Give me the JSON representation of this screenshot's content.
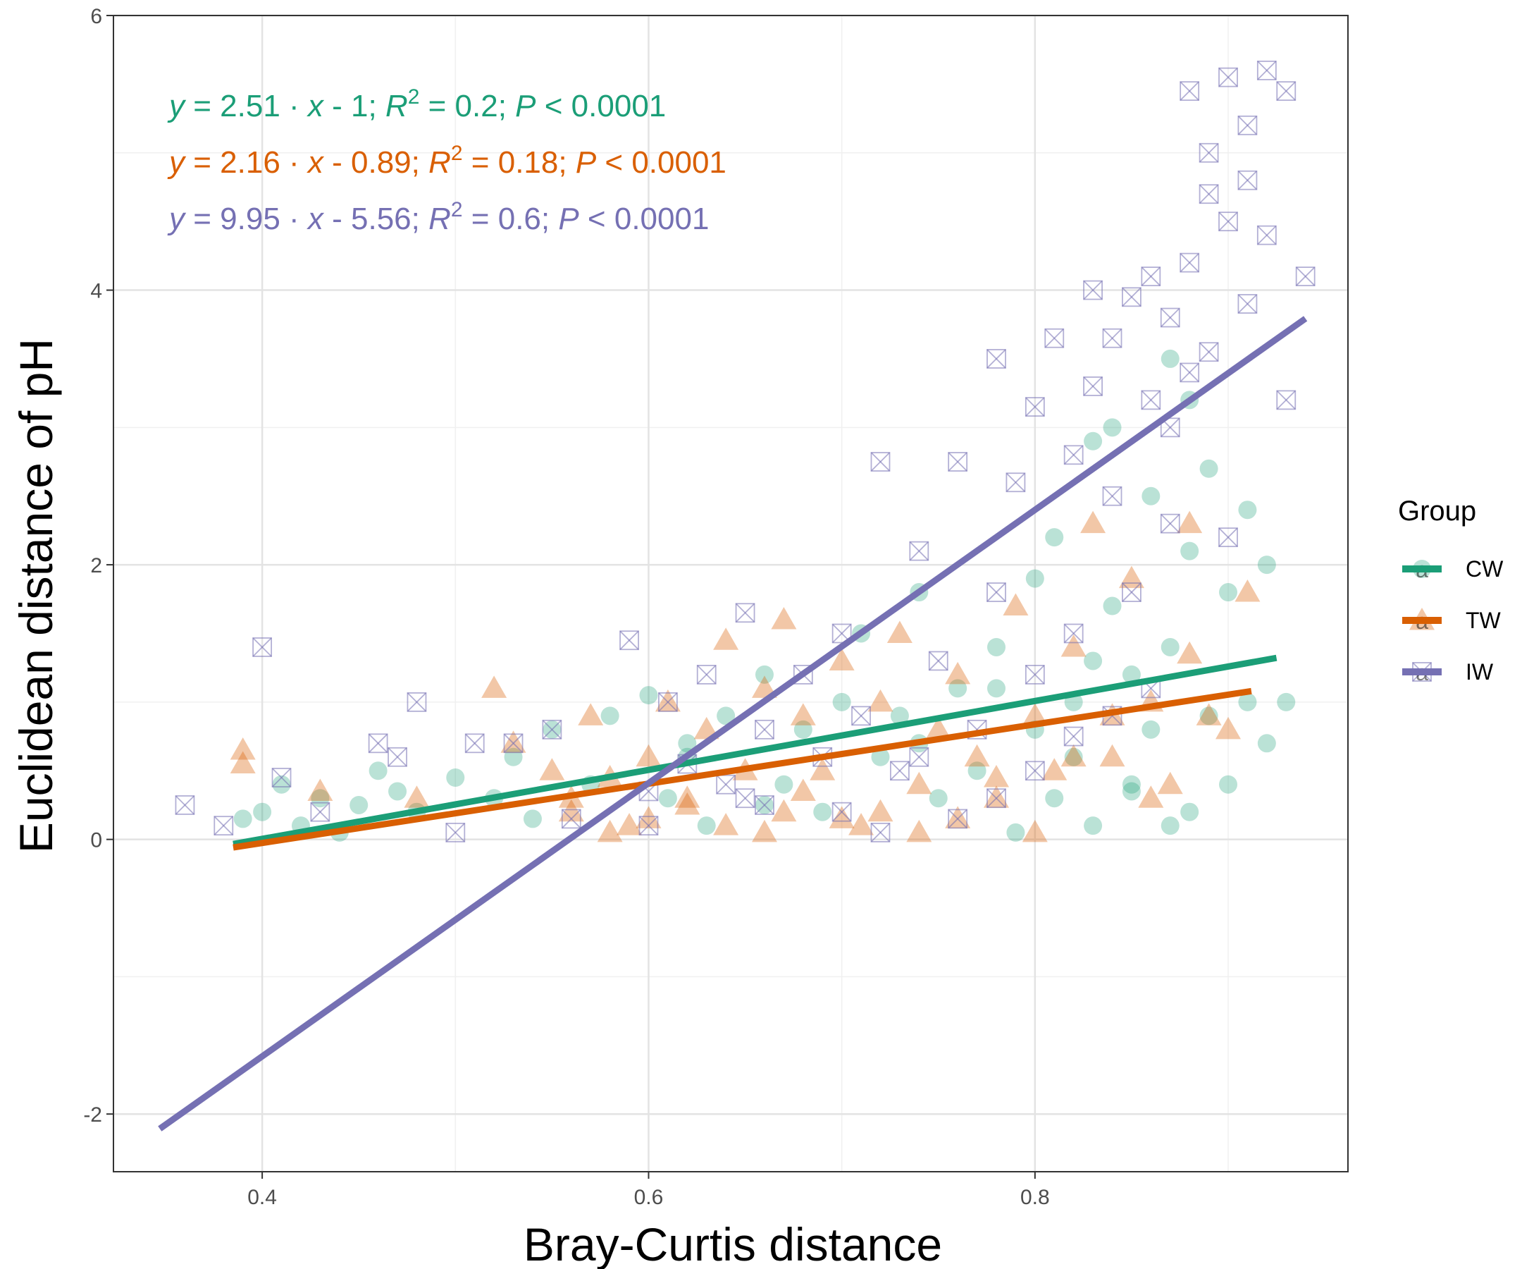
{
  "chart_data": {
    "type": "scatter",
    "xlabel": "Bray-Curtis distance",
    "ylabel": "Euclidean distance of pH",
    "xlim": [
      0.323,
      0.962
    ],
    "ylim": [
      -2.42,
      6.0
    ],
    "x_ticks": [
      0.4,
      0.6,
      0.8
    ],
    "x_tick_labels": [
      "0.4",
      "0.6",
      "0.8"
    ],
    "y_ticks": [
      -2,
      0,
      2,
      4,
      6
    ],
    "y_tick_labels": [
      "-2",
      "0",
      "2",
      "4",
      "6"
    ],
    "grid": true,
    "legend": {
      "title": "Group",
      "position": "right",
      "glyph": "a",
      "entries": [
        {
          "label": "CW",
          "color": "#1b9e77",
          "shape": "circle"
        },
        {
          "label": "TW",
          "color": "#d95f02",
          "shape": "triangle"
        },
        {
          "label": "IW",
          "color": "#7570b3",
          "shape": "boxed-x"
        }
      ]
    },
    "equation_parts": {
      "y": "y",
      "eq": " = ",
      "dot": " · ",
      "x": "x",
      "R": "R",
      "sq": "2",
      "P": "P",
      "sep": ";  "
    },
    "series": [
      {
        "name": "CW",
        "color": "#1b9e77",
        "shape": "circle",
        "fit": {
          "slope": 2.51,
          "intercept": -1,
          "x_range": [
            0.385,
            0.925
          ],
          "slope_text": "2.51",
          "intercept_text": " - 1",
          "r2_text": " = 0.2",
          "p_text": " < 0.0001"
        },
        "points_x": [
          0.39,
          0.4,
          0.41,
          0.42,
          0.43,
          0.44,
          0.45,
          0.46,
          0.47,
          0.48,
          0.5,
          0.52,
          0.53,
          0.54,
          0.55,
          0.57,
          0.58,
          0.6,
          0.61,
          0.62,
          0.63,
          0.64,
          0.66,
          0.67,
          0.68,
          0.69,
          0.7,
          0.71,
          0.72,
          0.73,
          0.74,
          0.75,
          0.76,
          0.77,
          0.78,
          0.79,
          0.8,
          0.8,
          0.81,
          0.81,
          0.82,
          0.82,
          0.83,
          0.83,
          0.84,
          0.84,
          0.85,
          0.85,
          0.86,
          0.86,
          0.87,
          0.87,
          0.88,
          0.88,
          0.89,
          0.89,
          0.9,
          0.9,
          0.91,
          0.91,
          0.92,
          0.92,
          0.93,
          0.87,
          0.88,
          0.85,
          0.83,
          0.78,
          0.74,
          0.66,
          0.62
        ],
        "points_y": [
          0.15,
          0.2,
          0.4,
          0.1,
          0.3,
          0.05,
          0.25,
          0.5,
          0.35,
          0.2,
          0.45,
          0.3,
          0.6,
          0.15,
          0.8,
          0.4,
          0.9,
          1.05,
          0.3,
          0.7,
          0.1,
          0.9,
          1.2,
          0.4,
          0.8,
          0.2,
          1.0,
          1.5,
          0.6,
          0.9,
          1.8,
          0.3,
          1.1,
          0.5,
          1.4,
          0.05,
          1.9,
          0.8,
          0.3,
          2.2,
          1.0,
          0.6,
          2.9,
          0.1,
          1.7,
          3.0,
          1.2,
          0.4,
          2.5,
          0.8,
          3.5,
          1.4,
          0.2,
          2.1,
          0.9,
          2.7,
          0.4,
          1.8,
          2.4,
          1.0,
          0.7,
          2.0,
          1.0,
          0.1,
          3.2,
          0.35,
          1.3,
          1.1,
          0.7,
          0.25,
          0.6
        ]
      },
      {
        "name": "TW",
        "color": "#d95f02",
        "shape": "triangle",
        "fit": {
          "slope": 2.16,
          "intercept": -0.89,
          "x_range": [
            0.385,
            0.912
          ],
          "slope_text": "2.16",
          "intercept_text": " - 0.89",
          "r2_text": " = 0.18",
          "p_text": " < 0.0001"
        },
        "points_x": [
          0.39,
          0.39,
          0.43,
          0.48,
          0.52,
          0.53,
          0.55,
          0.56,
          0.57,
          0.58,
          0.59,
          0.6,
          0.61,
          0.62,
          0.63,
          0.64,
          0.65,
          0.66,
          0.67,
          0.67,
          0.68,
          0.69,
          0.7,
          0.71,
          0.72,
          0.73,
          0.74,
          0.75,
          0.76,
          0.77,
          0.78,
          0.79,
          0.8,
          0.81,
          0.82,
          0.83,
          0.84,
          0.85,
          0.86,
          0.87,
          0.88,
          0.89,
          0.9,
          0.91,
          0.74,
          0.72,
          0.7,
          0.68,
          0.66,
          0.64,
          0.62,
          0.76,
          0.78,
          0.8,
          0.82,
          0.84,
          0.86,
          0.88,
          0.6,
          0.58,
          0.56
        ],
        "points_y": [
          0.55,
          0.65,
          0.35,
          0.3,
          1.1,
          0.7,
          0.5,
          0.2,
          0.9,
          0.45,
          0.1,
          0.6,
          1.0,
          0.3,
          0.8,
          1.45,
          0.5,
          1.1,
          1.6,
          0.2,
          0.9,
          0.5,
          1.3,
          0.1,
          1.0,
          1.5,
          0.4,
          0.8,
          1.2,
          0.6,
          0.3,
          1.7,
          0.9,
          0.5,
          1.4,
          2.3,
          0.6,
          1.9,
          1.0,
          0.4,
          2.3,
          0.9,
          0.8,
          1.8,
          0.05,
          0.2,
          0.15,
          0.35,
          0.05,
          0.1,
          0.25,
          0.15,
          0.45,
          0.05,
          0.6,
          0.9,
          0.3,
          1.35,
          0.15,
          0.05,
          0.3
        ]
      },
      {
        "name": "IW",
        "color": "#7570b3",
        "shape": "boxed-x",
        "fit": {
          "slope": 9.95,
          "intercept": -5.56,
          "x_range": [
            0.347,
            0.94
          ],
          "slope_text": "9.95",
          "intercept_text": " - 5.56",
          "r2_text": " = 0.6",
          "p_text": " < 0.0001"
        },
        "points_x": [
          0.36,
          0.38,
          0.4,
          0.41,
          0.43,
          0.46,
          0.47,
          0.48,
          0.5,
          0.51,
          0.53,
          0.55,
          0.56,
          0.59,
          0.6,
          0.61,
          0.62,
          0.63,
          0.64,
          0.65,
          0.66,
          0.68,
          0.69,
          0.7,
          0.71,
          0.72,
          0.73,
          0.74,
          0.75,
          0.76,
          0.77,
          0.78,
          0.78,
          0.79,
          0.8,
          0.8,
          0.81,
          0.82,
          0.82,
          0.83,
          0.83,
          0.84,
          0.84,
          0.85,
          0.85,
          0.86,
          0.86,
          0.87,
          0.87,
          0.87,
          0.88,
          0.88,
          0.88,
          0.89,
          0.89,
          0.89,
          0.9,
          0.9,
          0.9,
          0.91,
          0.91,
          0.91,
          0.92,
          0.92,
          0.93,
          0.93,
          0.94,
          0.65,
          0.7,
          0.72,
          0.74,
          0.76,
          0.78,
          0.8,
          0.82,
          0.84,
          0.86,
          0.6,
          0.66
        ],
        "points_y": [
          0.25,
          0.1,
          1.4,
          0.45,
          0.2,
          0.7,
          0.6,
          1.0,
          0.05,
          0.7,
          0.7,
          0.8,
          0.15,
          1.45,
          0.35,
          1.0,
          0.55,
          1.2,
          0.4,
          1.65,
          0.8,
          1.2,
          0.6,
          1.5,
          0.9,
          2.75,
          0.5,
          2.1,
          1.3,
          2.75,
          0.8,
          1.8,
          3.5,
          2.6,
          1.2,
          3.15,
          3.65,
          2.8,
          1.5,
          3.3,
          4.0,
          2.5,
          3.65,
          1.8,
          3.95,
          3.2,
          4.1,
          2.3,
          3.0,
          3.8,
          5.45,
          4.2,
          3.4,
          4.7,
          3.55,
          5.0,
          2.2,
          4.5,
          5.55,
          3.9,
          4.8,
          5.2,
          5.6,
          4.4,
          3.2,
          5.45,
          4.1,
          0.3,
          0.2,
          0.05,
          0.6,
          0.15,
          0.3,
          0.5,
          0.75,
          0.9,
          1.1,
          0.1,
          0.25
        ]
      }
    ]
  }
}
